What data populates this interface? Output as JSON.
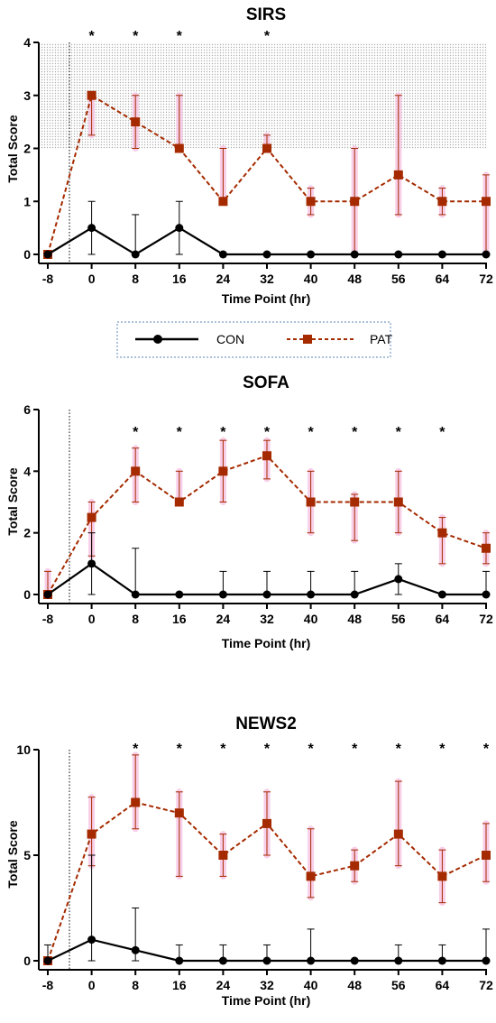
{
  "legend": {
    "con_label": "CON",
    "pat_label": "PAT"
  },
  "colors": {
    "con": "#000000",
    "pat": "#a52a00",
    "error_glow": "#f7c3e3",
    "shade": "#cccccc",
    "legend_border": "#7a9cc4"
  },
  "chart_data": [
    {
      "type": "line",
      "title": "SIRS",
      "xlabel": "Time Point (hr)",
      "ylabel": "Total Score",
      "categories": [
        "-8",
        "0",
        "8",
        "16",
        "24",
        "32",
        "40",
        "48",
        "56",
        "64",
        "72"
      ],
      "ylim": [
        0,
        4
      ],
      "yticks": [
        "0",
        "1",
        "2",
        "3",
        "4"
      ],
      "shaded_band": [
        2,
        4
      ],
      "star_text": "*",
      "significant": [
        "0",
        "8",
        "16",
        "32"
      ],
      "series": [
        {
          "name": "CON",
          "values": [
            0,
            0.5,
            0,
            0.5,
            0,
            0,
            0,
            0,
            0,
            0,
            0
          ],
          "err_upper": [
            0,
            1,
            0.75,
            1,
            0,
            0,
            0,
            0,
            0,
            0,
            0
          ],
          "err_lower": [
            0,
            0,
            0,
            0,
            0,
            0,
            0,
            0,
            0,
            0,
            0
          ]
        },
        {
          "name": "PAT",
          "values": [
            0,
            3,
            2.5,
            2,
            1,
            2,
            1,
            1,
            1.5,
            1,
            1
          ],
          "err_upper": [
            0,
            3,
            3,
            3,
            2,
            2.25,
            1.25,
            2,
            3,
            1.25,
            1.5
          ],
          "err_lower": [
            0,
            2.25,
            2,
            2,
            1,
            2,
            0.75,
            0,
            0.75,
            0.75,
            0
          ]
        }
      ]
    },
    {
      "type": "line",
      "title": "SOFA",
      "xlabel": "Time Point (hr)",
      "ylabel": "Total Score",
      "categories": [
        "-8",
        "0",
        "8",
        "16",
        "24",
        "32",
        "40",
        "48",
        "56",
        "64",
        "72"
      ],
      "ylim": [
        0,
        6
      ],
      "yticks": [
        "0",
        "2",
        "4",
        "6"
      ],
      "star_text": "*",
      "significant": [
        "8",
        "16",
        "24",
        "32",
        "40",
        "48",
        "56",
        "64"
      ],
      "series": [
        {
          "name": "CON",
          "values": [
            0,
            1,
            0,
            0,
            0,
            0,
            0,
            0,
            0.5,
            0,
            0
          ],
          "err_upper": [
            0,
            2,
            1.5,
            0,
            0.75,
            0.75,
            0.75,
            0.75,
            1,
            0,
            0.75
          ],
          "err_lower": [
            0,
            0,
            0,
            0,
            0,
            0,
            0,
            0,
            0,
            0,
            0
          ]
        },
        {
          "name": "PAT",
          "values": [
            0,
            2.5,
            4,
            3,
            4,
            4.5,
            3,
            3,
            3,
            2,
            1.5
          ],
          "err_upper": [
            0.75,
            3,
            4.75,
            4,
            5,
            5,
            4,
            3.25,
            4,
            2.5,
            2
          ],
          "err_lower": [
            0,
            1.25,
            3,
            3,
            3,
            3.75,
            2,
            1.75,
            2,
            1,
            1
          ]
        }
      ]
    },
    {
      "type": "line",
      "title": "NEWS2",
      "xlabel": "Time Point (hr)",
      "ylabel": "Total Score",
      "categories": [
        "-8",
        "0",
        "8",
        "16",
        "24",
        "32",
        "40",
        "48",
        "56",
        "64",
        "72"
      ],
      "ylim": [
        0,
        10
      ],
      "yticks": [
        "0",
        "5",
        "10"
      ],
      "star_text": "*",
      "significant": [
        "8",
        "16",
        "24",
        "32",
        "40",
        "48",
        "56",
        "64",
        "72"
      ],
      "series": [
        {
          "name": "CON",
          "values": [
            0,
            1,
            0.5,
            0,
            0,
            0,
            0,
            0,
            0,
            0,
            0
          ],
          "err_upper": [
            0.75,
            5,
            2.5,
            0.75,
            0.75,
            0.75,
            1.5,
            0,
            0.75,
            0.75,
            1.5
          ],
          "err_lower": [
            0,
            0,
            0,
            0,
            0,
            0,
            0,
            0,
            0,
            0,
            0
          ]
        },
        {
          "name": "PAT",
          "values": [
            0,
            6,
            7.5,
            7,
            5,
            6.5,
            4,
            4.5,
            6,
            4,
            5
          ],
          "err_upper": [
            0,
            7.75,
            9.75,
            8,
            6,
            8,
            6.25,
            5.25,
            8.5,
            5.25,
            6.5
          ],
          "err_lower": [
            0,
            4.5,
            6.25,
            4,
            4,
            5,
            3,
            3.75,
            4.5,
            2.75,
            3.75
          ]
        }
      ]
    }
  ]
}
